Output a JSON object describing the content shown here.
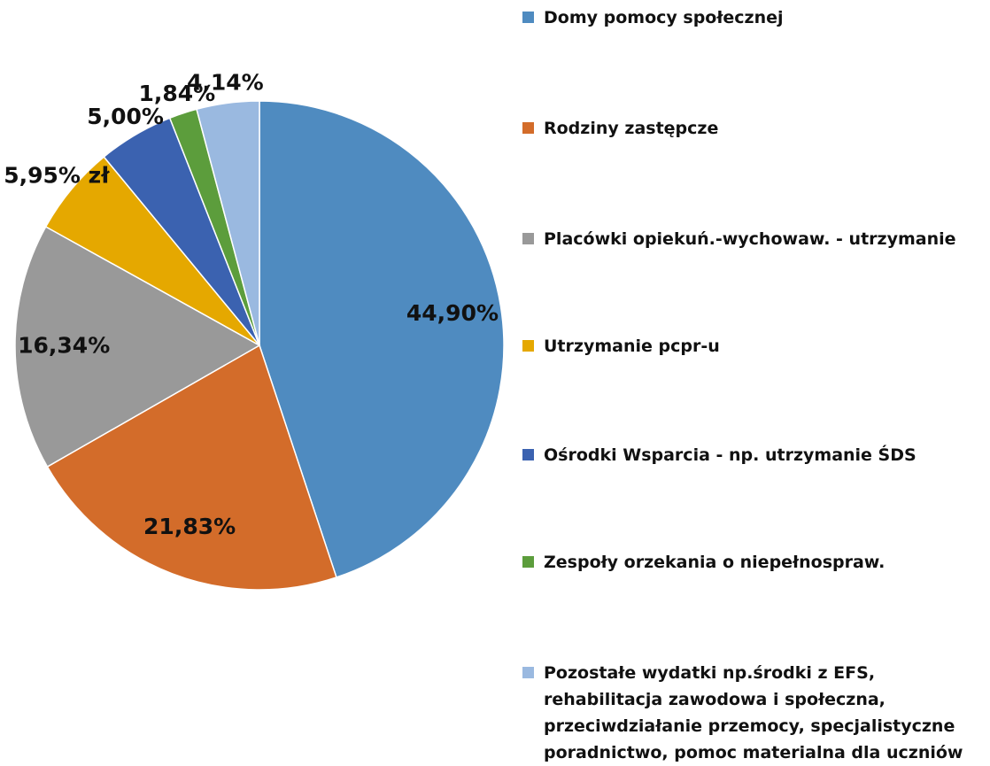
{
  "chart_data": {
    "type": "pie",
    "categories": [
      "Domy pomocy społecznej",
      "Rodziny zastępcze",
      " Placówki opiekuń.-wychowaw. - utrzymanie",
      "Utrzymanie pcpr-u",
      "Ośrodki Wsparcia - np. utrzymanie ŚDS",
      "Zespoły orzekania o niepełnospraw.",
      "Pozostałe wydatki np.środki z EFS, rehabilitacja zawodowa i społeczna, przeciwdziałanie przemocy, specjalistyczne poradnictwo, pomoc materialna dla uczniów"
    ],
    "values": [
      44.9,
      21.83,
      16.34,
      5.95,
      5.0,
      1.84,
      4.14
    ],
    "value_labels": [
      "44,90%",
      "21,83%",
      "16,34%",
      "5,95% zł",
      "5,00%",
      "1,84%",
      "4,14%"
    ],
    "colors": [
      "#4f8bc0",
      "#d36c2a",
      "#999999",
      "#e5a800",
      "#3b62b0",
      "#5c9d3c",
      "#9ab9e0"
    ]
  }
}
